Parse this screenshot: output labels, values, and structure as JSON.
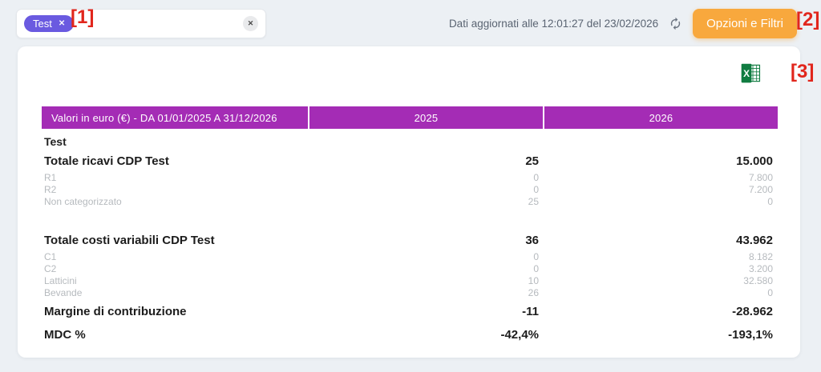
{
  "topbar": {
    "chip_label": "Test",
    "chip_remove_icon": "✕",
    "clear_icon": "✕",
    "updated_text": "Dati aggiornati alle 12:01:27 del 23/02/2026",
    "options_button_label": "Opzioni e Filtri"
  },
  "annotations": {
    "marker1": "[1]",
    "marker2": "[2]",
    "marker3": "[3]"
  },
  "table": {
    "header": {
      "col1": "Valori in euro (€) - DA 01/01/2025 A 31/12/2026",
      "col2": "2025",
      "col3": "2026"
    },
    "rows": [
      {
        "type": "section",
        "label": "Test",
        "v2025": "",
        "v2026": ""
      },
      {
        "type": "total",
        "label": "Totale ricavi CDP Test",
        "v2025": "25",
        "v2026": "15.000"
      },
      {
        "type": "sub",
        "label": "R1",
        "v2025": "0",
        "v2026": "7.800"
      },
      {
        "type": "sub",
        "label": "R2",
        "v2025": "0",
        "v2026": "7.200"
      },
      {
        "type": "sub",
        "label": "Non categorizzato",
        "v2025": "25",
        "v2026": "0"
      },
      {
        "type": "spacer",
        "label": "",
        "v2025": "",
        "v2026": ""
      },
      {
        "type": "total",
        "label": "Totale costi variabili CDP Test",
        "v2025": "36",
        "v2026": "43.962"
      },
      {
        "type": "sub",
        "label": "C1",
        "v2025": "0",
        "v2026": "8.182"
      },
      {
        "type": "sub",
        "label": "C2",
        "v2025": "0",
        "v2026": "3.200"
      },
      {
        "type": "sub",
        "label": "Latticini",
        "v2025": "10",
        "v2026": "32.580"
      },
      {
        "type": "sub",
        "label": "Bevande",
        "v2025": "26",
        "v2026": "0"
      },
      {
        "type": "total",
        "label": "Margine di contribuzione",
        "v2025": "-11",
        "v2026": "-28.962",
        "gap_before": true
      },
      {
        "type": "total",
        "label": "MDC %",
        "v2025": "-42,4%",
        "v2026": "-193,1%",
        "gap_before": true
      }
    ]
  },
  "colors": {
    "page_background": "#ecf0f4",
    "table_header_purple": "#a42cb5",
    "chip_purple": "#6a5ae0",
    "button_orange": "#f8a83d",
    "annotation_red": "#e1261c",
    "excel_green": "#107c41",
    "muted_text": "#b6babe"
  }
}
